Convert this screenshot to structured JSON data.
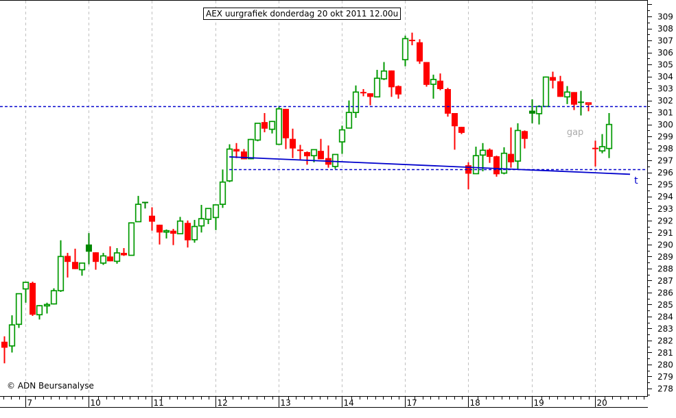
{
  "copyright": "© ADN Beursanalyse",
  "colors": {
    "up": "#009900",
    "up_filled": "#008800",
    "down": "#ff0000",
    "grid": "#c0c0c0",
    "level_line": "#0000cc",
    "trendline": "#0000cc",
    "annotation": "#aaaaaa",
    "axis": "#000000"
  },
  "chart_data": {
    "type": "candlestick",
    "title": "AEX uurgrafiek donderdag 20 okt 2011 12.00u",
    "xlabel": "",
    "ylabel": "",
    "ylim": [
      277.5,
      310
    ],
    "grid": "vertical dashed at day boundaries",
    "y_axis": {
      "position": "right",
      "ticks": [
        278,
        279,
        280,
        281,
        282,
        283,
        284,
        285,
        286,
        287,
        288,
        289,
        290,
        291,
        292,
        293,
        294,
        295,
        296,
        297,
        298,
        299,
        300,
        301,
        302,
        303,
        304,
        305,
        306,
        307,
        308,
        309
      ]
    },
    "x_axis": {
      "bars_per_day": 9,
      "day_labels": [
        "7",
        "10",
        "11",
        "12",
        "13",
        "14",
        "17",
        "18",
        "19",
        "20"
      ]
    },
    "candle_format": [
      "open",
      "high",
      "low",
      "close",
      "style_override"
    ],
    "sessions": [
      {
        "day": "",
        "candles": [
          [
            281.9,
            282.35,
            280.1,
            281.4
          ],
          [
            281.55,
            284.1,
            281.0,
            283.3
          ],
          [
            283.35,
            285.9,
            283.05,
            285.9
          ]
        ]
      },
      {
        "day": "7",
        "candles": [
          [
            286.3,
            286.9,
            285.15,
            286.85
          ],
          [
            286.8,
            286.9,
            284.05,
            284.15
          ],
          [
            284.15,
            284.95,
            283.75,
            284.9
          ],
          [
            284.9,
            285.15,
            284.25,
            285.0
          ],
          [
            285.05,
            286.35,
            285.0,
            286.15
          ],
          [
            286.15,
            290.35,
            286.05,
            289.0
          ],
          [
            289.05,
            289.3,
            287.25,
            288.55
          ],
          [
            288.55,
            289.65,
            287.95,
            287.95
          ],
          [
            287.9,
            288.45,
            287.4,
            288.45
          ]
        ]
      },
      {
        "day": "10",
        "candles": [
          [
            289.4,
            290.95,
            288.35,
            290.0,
            "filled"
          ],
          [
            289.35,
            289.35,
            287.9,
            288.55
          ],
          [
            288.45,
            289.3,
            288.3,
            289.05
          ],
          [
            289.0,
            289.85,
            288.6,
            288.6
          ],
          [
            288.6,
            289.7,
            288.4,
            289.3
          ],
          [
            289.3,
            289.7,
            289.05,
            289.1
          ],
          [
            289.1,
            291.85,
            289.1,
            291.8
          ],
          [
            291.9,
            294.05,
            291.9,
            293.35
          ],
          [
            293.4,
            293.55,
            293.0,
            293.5,
            "filled"
          ]
        ]
      },
      {
        "day": "11",
        "candles": [
          [
            292.4,
            293.1,
            291.15,
            291.9
          ],
          [
            291.65,
            291.65,
            290.0,
            291.0
          ],
          [
            291.05,
            291.25,
            290.5,
            291.15
          ],
          [
            291.15,
            291.3,
            289.95,
            290.9
          ],
          [
            290.9,
            292.3,
            290.9,
            291.95
          ],
          [
            291.8,
            292.0,
            289.75,
            290.35
          ],
          [
            290.4,
            292.05,
            290.15,
            291.5
          ],
          [
            291.55,
            293.3,
            291.0,
            292.15
          ],
          [
            292.1,
            293.0,
            291.7,
            293.0
          ]
        ]
      },
      {
        "day": "12",
        "candles": [
          [
            292.25,
            293.3,
            291.2,
            293.3
          ],
          [
            293.35,
            296.25,
            293.05,
            295.2
          ],
          [
            295.3,
            298.35,
            295.2,
            297.95
          ],
          [
            297.95,
            298.45,
            297.2,
            297.75
          ],
          [
            297.75,
            297.95,
            297.1,
            297.1
          ],
          [
            297.15,
            298.8,
            297.1,
            298.75
          ],
          [
            298.7,
            300.1,
            298.6,
            300.1
          ],
          [
            300.2,
            300.95,
            299.35,
            299.65
          ],
          [
            299.6,
            300.3,
            299.25,
            300.25
          ]
        ]
      },
      {
        "day": "13",
        "candles": [
          [
            298.35,
            301.5,
            298.3,
            301.3
          ],
          [
            301.3,
            301.3,
            297.95,
            298.85
          ],
          [
            298.8,
            299.65,
            297.2,
            298.0
          ],
          [
            297.85,
            298.3,
            297.1,
            297.75
          ],
          [
            297.7,
            297.75,
            296.65,
            297.35
          ],
          [
            297.4,
            297.9,
            296.85,
            297.9
          ],
          [
            297.8,
            298.8,
            297.1,
            297.1
          ],
          [
            297.2,
            298.25,
            296.4,
            296.65
          ],
          [
            296.5,
            297.5,
            296.3,
            297.5
          ]
        ]
      },
      {
        "day": "14",
        "candles": [
          [
            298.55,
            299.9,
            297.55,
            299.55
          ],
          [
            299.7,
            302.0,
            299.7,
            301.0
          ],
          [
            301.0,
            303.25,
            300.55,
            302.7
          ],
          [
            302.65,
            302.95,
            302.35,
            302.6
          ],
          [
            302.6,
            302.6,
            301.6,
            302.3
          ],
          [
            302.3,
            304.55,
            302.3,
            303.85
          ],
          [
            303.8,
            305.2,
            303.7,
            304.45
          ],
          [
            304.5,
            304.5,
            302.3,
            303.1
          ],
          [
            303.2,
            303.25,
            302.15,
            302.5
          ]
        ]
      },
      {
        "day": "17",
        "candles": [
          [
            305.4,
            307.4,
            304.85,
            307.15
          ],
          [
            307.0,
            307.65,
            306.6,
            306.95
          ],
          [
            306.85,
            307.1,
            305.05,
            305.25
          ],
          [
            305.2,
            305.2,
            303.15,
            303.3
          ],
          [
            303.35,
            304.15,
            302.15,
            303.75
          ],
          [
            303.65,
            304.25,
            302.85,
            302.95
          ],
          [
            302.95,
            303.05,
            300.65,
            300.9
          ],
          [
            300.95,
            300.95,
            297.9,
            299.85
          ],
          [
            299.8,
            299.8,
            299.2,
            299.3
          ]
        ]
      },
      {
        "day": "18",
        "candles": [
          [
            296.6,
            296.85,
            294.6,
            295.9
          ],
          [
            295.9,
            298.15,
            295.9,
            297.4
          ],
          [
            297.45,
            298.45,
            296.1,
            297.85
          ],
          [
            297.9,
            298.0,
            296.8,
            297.3
          ],
          [
            297.35,
            297.4,
            295.65,
            295.85
          ],
          [
            295.95,
            298.1,
            295.85,
            297.6
          ],
          [
            297.55,
            299.75,
            296.4,
            296.85
          ],
          [
            296.95,
            300.1,
            296.3,
            299.5
          ],
          [
            299.45,
            299.5,
            298.0,
            298.8
          ]
        ]
      },
      {
        "day": "19",
        "candles": [
          [
            300.9,
            302.1,
            300.1,
            301.15,
            "filled"
          ],
          [
            300.9,
            301.6,
            300.0,
            301.5
          ],
          [
            301.5,
            304.0,
            301.5,
            303.95
          ],
          [
            303.95,
            304.4,
            303.0,
            303.65
          ],
          [
            303.6,
            304.05,
            302.3,
            302.3
          ],
          [
            302.3,
            303.2,
            301.7,
            302.7
          ],
          [
            302.7,
            302.7,
            301.2,
            301.65
          ],
          [
            301.75,
            302.8,
            300.75,
            301.85,
            "filled"
          ],
          [
            301.8,
            301.8,
            301.1,
            301.7,
            "hollow"
          ]
        ]
      },
      {
        "day": "20",
        "candles": [
          [
            298.0,
            298.65,
            296.5,
            297.95
          ],
          [
            297.8,
            299.2,
            297.6,
            298.15
          ],
          [
            298.0,
            300.95,
            297.2,
            300.0
          ]
        ]
      }
    ],
    "levels": [
      {
        "name": "resistance",
        "value": 301.5,
        "style": "dashed",
        "start_index": null
      },
      {
        "name": "support",
        "value": 296.25,
        "style": "dashed",
        "start_index": 32
      }
    ],
    "trendline": {
      "start": {
        "index": 32,
        "value": 297.3
      },
      "end": {
        "index": 89,
        "value": 295.85
      },
      "label": "t",
      "label_index": 89.6,
      "label_value": 295.35
    },
    "annotations": [
      {
        "text": "gap",
        "index": 80.0,
        "value": 299.4
      }
    ]
  }
}
